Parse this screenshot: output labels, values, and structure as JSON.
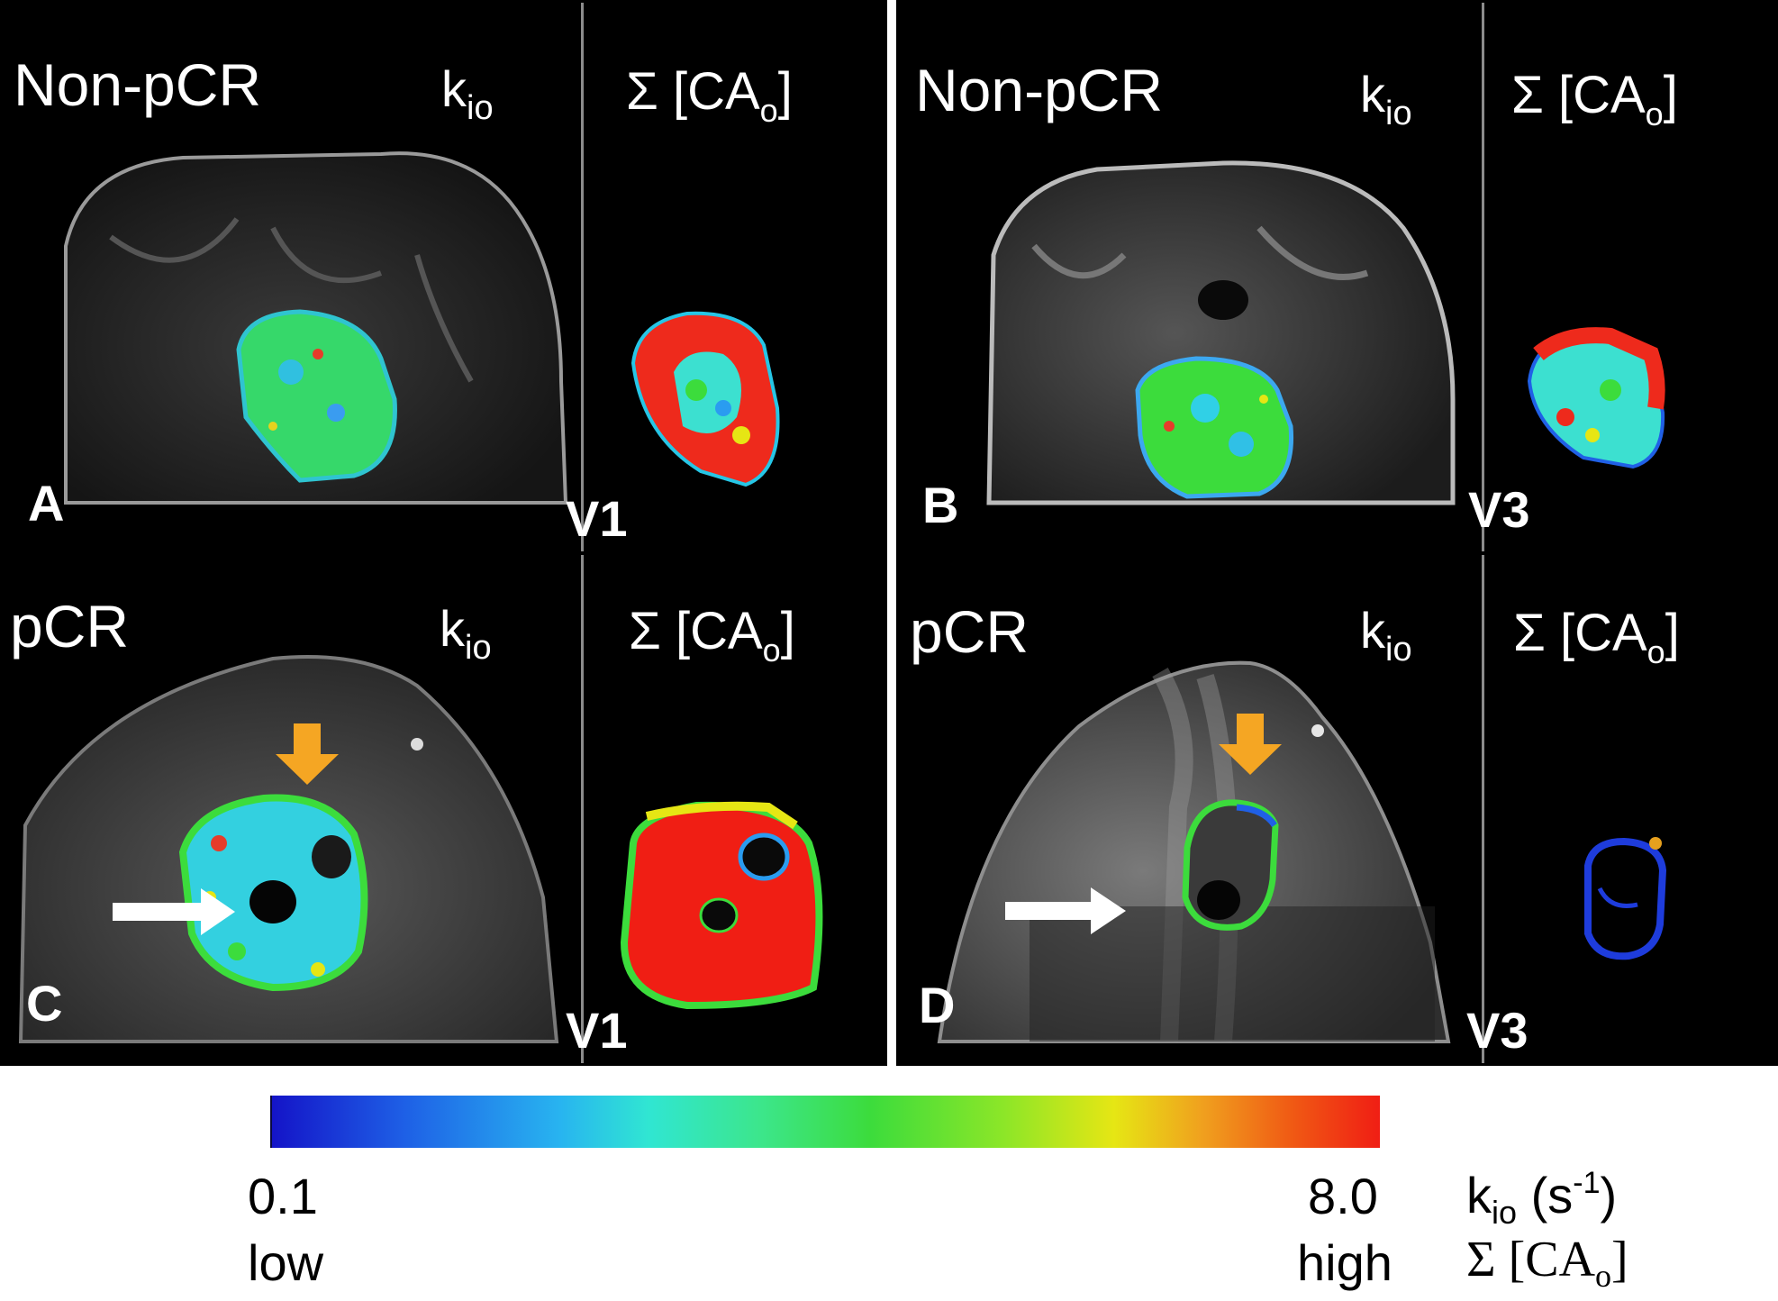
{
  "panels": {
    "a": {
      "group": "Non-pCR",
      "kio_label": "k",
      "kio_sub": "io",
      "sigma_label": "Σ [CA",
      "sigma_sub": "o",
      "sigma_close": "]",
      "letter": "A",
      "visit": "V1"
    },
    "b": {
      "group": "Non-pCR",
      "kio_label": "k",
      "kio_sub": "io",
      "sigma_label": "Σ [CA",
      "sigma_sub": "o",
      "sigma_close": "]",
      "letter": "B",
      "visit": "V3"
    },
    "c": {
      "group": "pCR",
      "kio_label": "k",
      "kio_sub": "io",
      "sigma_label": "Σ [CA",
      "sigma_sub": "o",
      "sigma_close": "]",
      "letter": "C",
      "visit": "V1"
    },
    "d": {
      "group": "pCR",
      "kio_label": "k",
      "kio_sub": "io",
      "sigma_label": "Σ [CA",
      "sigma_sub": "o",
      "sigma_close": "]",
      "letter": "D",
      "visit": "V3"
    }
  },
  "colorbar": {
    "min_value": "0.1",
    "max_value": "8.0",
    "min_word": "low",
    "max_word": "high",
    "kio_unit_main": "k",
    "kio_unit_sub": "io",
    "kio_unit_open": " (s",
    "kio_unit_sup": "-1",
    "kio_unit_close": ")",
    "sigma_main": "Σ [CA",
    "sigma_sub": "o",
    "sigma_close": "]",
    "colors": [
      "#1414c8",
      "#28b4f0",
      "#30e6d2",
      "#3cdc3c",
      "#e6e614",
      "#f01e14"
    ]
  },
  "arrow_colors": {
    "orange": "#f5a623",
    "white": "#ffffff"
  }
}
